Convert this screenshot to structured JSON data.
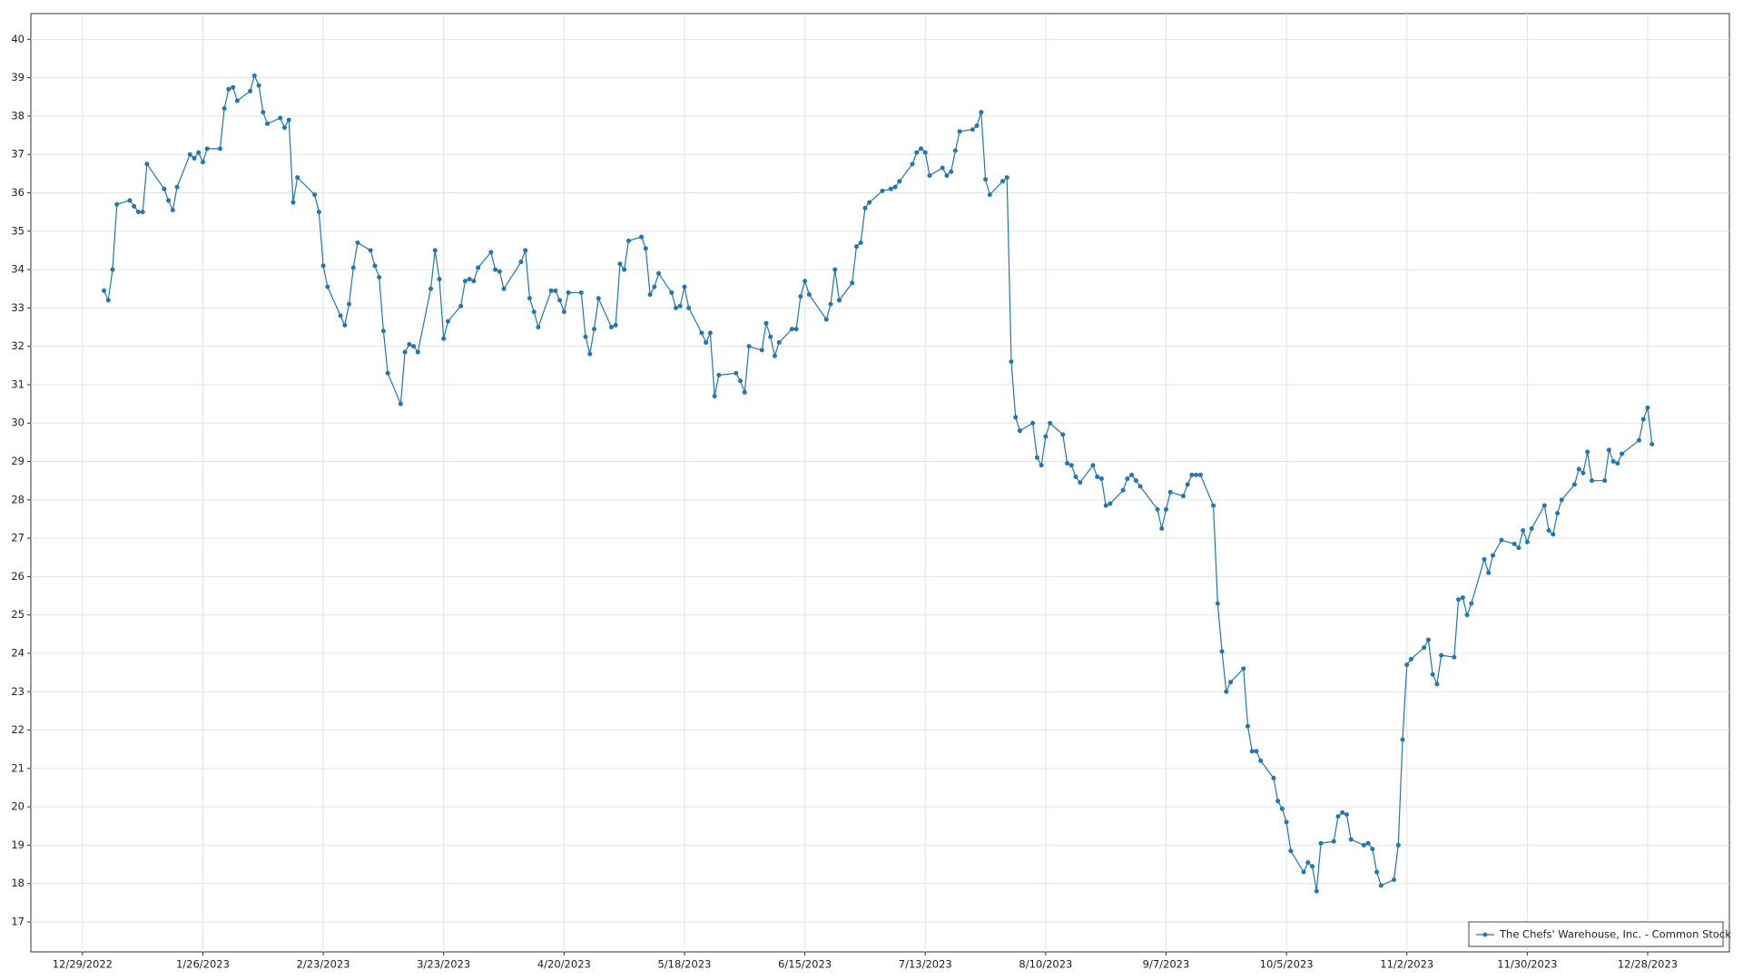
{
  "chart_data": {
    "type": "line",
    "xlim": [
      "12/17/2022",
      "1/16/2024"
    ],
    "ylim": [
      16.22,
      40.67
    ],
    "xticks": [
      "12/29/2022",
      "1/26/2023",
      "2/23/2023",
      "3/23/2023",
      "4/20/2023",
      "5/18/2023",
      "6/15/2023",
      "7/13/2023",
      "8/10/2023",
      "9/7/2023",
      "10/5/2023",
      "11/2/2023",
      "11/30/2023",
      "12/28/2023"
    ],
    "yticks": [
      17,
      18,
      19,
      20,
      21,
      22,
      23,
      24,
      25,
      26,
      27,
      28,
      29,
      30,
      31,
      32,
      33,
      34,
      35,
      36,
      37,
      38,
      39,
      40
    ],
    "grid": true,
    "legend": "lower right",
    "x": [
      "1/3/2023",
      "1/4/2023",
      "1/5/2023",
      "1/6/2023",
      "1/9/2023",
      "1/10/2023",
      "1/11/2023",
      "1/12/2023",
      "1/13/2023",
      "1/17/2023",
      "1/18/2023",
      "1/19/2023",
      "1/20/2023",
      "1/23/2023",
      "1/24/2023",
      "1/25/2023",
      "1/26/2023",
      "1/27/2023",
      "1/30/2023",
      "1/31/2023",
      "2/1/2023",
      "2/2/2023",
      "2/3/2023",
      "2/6/2023",
      "2/7/2023",
      "2/8/2023",
      "2/9/2023",
      "2/10/2023",
      "2/13/2023",
      "2/14/2023",
      "2/15/2023",
      "2/16/2023",
      "2/17/2023",
      "2/21/2023",
      "2/22/2023",
      "2/23/2023",
      "2/24/2023",
      "2/27/2023",
      "2/28/2023",
      "3/1/2023",
      "3/2/2023",
      "3/3/2023",
      "3/6/2023",
      "3/7/2023",
      "3/8/2023",
      "3/9/2023",
      "3/10/2023",
      "3/13/2023",
      "3/14/2023",
      "3/15/2023",
      "3/16/2023",
      "3/17/2023",
      "3/20/2023",
      "3/21/2023",
      "3/22/2023",
      "3/23/2023",
      "3/24/2023",
      "3/27/2023",
      "3/28/2023",
      "3/29/2023",
      "3/30/2023",
      "3/31/2023",
      "4/3/2023",
      "4/4/2023",
      "4/5/2023",
      "4/6/2023",
      "4/10/2023",
      "4/11/2023",
      "4/12/2023",
      "4/13/2023",
      "4/14/2023",
      "4/17/2023",
      "4/18/2023",
      "4/19/2023",
      "4/20/2023",
      "4/21/2023",
      "4/24/2023",
      "4/25/2023",
      "4/26/2023",
      "4/27/2023",
      "4/28/2023",
      "5/1/2023",
      "5/2/2023",
      "5/3/2023",
      "5/4/2023",
      "5/5/2023",
      "5/8/2023",
      "5/9/2023",
      "5/10/2023",
      "5/11/2023",
      "5/12/2023",
      "5/15/2023",
      "5/16/2023",
      "5/17/2023",
      "5/18/2023",
      "5/19/2023",
      "5/22/2023",
      "5/23/2023",
      "5/24/2023",
      "5/25/2023",
      "5/26/2023",
      "5/30/2023",
      "5/31/2023",
      "6/1/2023",
      "6/2/2023",
      "6/5/2023",
      "6/6/2023",
      "6/7/2023",
      "6/8/2023",
      "6/9/2023",
      "6/12/2023",
      "6/13/2023",
      "6/14/2023",
      "6/15/2023",
      "6/16/2023",
      "6/20/2023",
      "6/21/2023",
      "6/22/2023",
      "6/23/2023",
      "6/26/2023",
      "6/27/2023",
      "6/28/2023",
      "6/29/2023",
      "6/30/2023",
      "7/3/2023",
      "7/5/2023",
      "7/6/2023",
      "7/7/2023",
      "7/10/2023",
      "7/11/2023",
      "7/12/2023",
      "7/13/2023",
      "7/14/2023",
      "7/17/2023",
      "7/18/2023",
      "7/19/2023",
      "7/20/2023",
      "7/21/2023",
      "7/24/2023",
      "7/25/2023",
      "7/26/2023",
      "7/27/2023",
      "7/28/2023",
      "7/31/2023",
      "8/1/2023",
      "8/2/2023",
      "8/3/2023",
      "8/4/2023",
      "8/7/2023",
      "8/8/2023",
      "8/9/2023",
      "8/10/2023",
      "8/11/2023",
      "8/14/2023",
      "8/15/2023",
      "8/16/2023",
      "8/17/2023",
      "8/18/2023",
      "8/21/2023",
      "8/22/2023",
      "8/23/2023",
      "8/24/2023",
      "8/25/2023",
      "8/28/2023",
      "8/29/2023",
      "8/30/2023",
      "8/31/2023",
      "9/1/2023",
      "9/5/2023",
      "9/6/2023",
      "9/7/2023",
      "9/8/2023",
      "9/11/2023",
      "9/12/2023",
      "9/13/2023",
      "9/14/2023",
      "9/15/2023",
      "9/18/2023",
      "9/19/2023",
      "9/20/2023",
      "9/21/2023",
      "9/22/2023",
      "9/25/2023",
      "9/26/2023",
      "9/27/2023",
      "9/28/2023",
      "9/29/2023",
      "10/2/2023",
      "10/3/2023",
      "10/4/2023",
      "10/5/2023",
      "10/6/2023",
      "10/9/2023",
      "10/10/2023",
      "10/11/2023",
      "10/12/2023",
      "10/13/2023",
      "10/16/2023",
      "10/17/2023",
      "10/18/2023",
      "10/19/2023",
      "10/20/2023",
      "10/23/2023",
      "10/24/2023",
      "10/25/2023",
      "10/26/2023",
      "10/27/2023",
      "10/30/2023",
      "10/31/2023",
      "11/1/2023",
      "11/2/2023",
      "11/3/2023",
      "11/6/2023",
      "11/7/2023",
      "11/8/2023",
      "11/9/2023",
      "11/10/2023",
      "11/13/2023",
      "11/14/2023",
      "11/15/2023",
      "11/16/2023",
      "11/17/2023",
      "11/20/2023",
      "11/21/2023",
      "11/22/2023",
      "11/24/2023",
      "11/27/2023",
      "11/28/2023",
      "11/29/2023",
      "11/30/2023",
      "12/1/2023",
      "12/4/2023",
      "12/5/2023",
      "12/6/2023",
      "12/7/2023",
      "12/8/2023",
      "12/11/2023",
      "12/12/2023",
      "12/13/2023",
      "12/14/2023",
      "12/15/2023",
      "12/18/2023",
      "12/19/2023",
      "12/20/2023",
      "12/21/2023",
      "12/22/2023",
      "12/26/2023",
      "12/27/2023",
      "12/28/2023",
      "12/29/2023"
    ],
    "series": [
      {
        "name": "The Chefs' Warehouse, Inc. - Common Stock",
        "color": "#2077b4",
        "values": [
          33.45,
          33.2,
          34.0,
          35.7,
          35.8,
          35.65,
          35.5,
          35.5,
          36.75,
          36.1,
          35.8,
          35.55,
          36.15,
          37.0,
          36.9,
          37.05,
          36.8,
          37.15,
          37.15,
          38.2,
          38.7,
          38.75,
          38.4,
          38.65,
          39.05,
          38.8,
          38.1,
          37.8,
          37.95,
          37.7,
          37.9,
          35.75,
          36.4,
          35.95,
          35.5,
          34.1,
          33.55,
          32.8,
          32.55,
          33.1,
          34.05,
          34.7,
          34.5,
          34.1,
          33.8,
          32.4,
          31.3,
          30.5,
          31.85,
          32.05,
          32.0,
          31.85,
          33.5,
          34.5,
          33.75,
          32.2,
          32.65,
          33.05,
          33.7,
          33.75,
          33.7,
          34.05,
          34.45,
          34.0,
          33.95,
          33.5,
          34.2,
          34.5,
          33.25,
          32.9,
          32.5,
          33.45,
          33.45,
          33.2,
          32.9,
          33.4,
          33.4,
          32.25,
          31.8,
          32.45,
          33.25,
          32.5,
          32.55,
          34.15,
          34.0,
          34.75,
          34.85,
          34.55,
          33.35,
          33.55,
          33.9,
          33.4,
          33.0,
          33.05,
          33.55,
          33.0,
          32.35,
          32.1,
          32.35,
          30.7,
          31.25,
          31.3,
          31.1,
          30.8,
          32.0,
          31.9,
          32.6,
          32.25,
          31.75,
          32.1,
          32.45,
          32.45,
          33.3,
          33.7,
          33.35,
          32.7,
          33.1,
          34.0,
          33.2,
          33.65,
          34.6,
          34.7,
          35.6,
          35.75,
          36.05,
          36.1,
          36.15,
          36.3,
          36.75,
          37.05,
          37.15,
          37.05,
          36.45,
          36.65,
          36.45,
          36.55,
          37.1,
          37.6,
          37.65,
          37.75,
          38.1,
          36.35,
          35.95,
          36.3,
          36.4,
          31.6,
          30.15,
          29.8,
          30.0,
          29.1,
          28.9,
          29.65,
          30.0,
          29.7,
          28.95,
          28.9,
          28.6,
          28.45,
          28.9,
          28.6,
          28.55,
          27.85,
          27.9,
          28.25,
          28.55,
          28.65,
          28.5,
          28.35,
          27.75,
          27.25,
          27.75,
          28.2,
          28.1,
          28.4,
          28.65,
          28.65,
          28.65,
          27.85,
          25.3,
          24.05,
          23.0,
          23.25,
          23.6,
          22.1,
          21.45,
          21.45,
          21.2,
          20.75,
          20.15,
          19.95,
          19.6,
          18.85,
          18.3,
          18.55,
          18.45,
          17.8,
          19.05,
          19.1,
          19.75,
          19.85,
          19.8,
          19.15,
          19.0,
          19.05,
          18.9,
          18.3,
          17.95,
          18.1,
          19.0,
          21.75,
          23.7,
          23.85,
          24.15,
          24.35,
          23.45,
          23.2,
          23.95,
          23.9,
          25.4,
          25.45,
          25.0,
          25.3,
          26.45,
          26.1,
          26.55,
          26.95,
          26.85,
          26.75,
          27.2,
          26.9,
          27.25,
          27.85,
          27.2,
          27.1,
          27.65,
          28.0,
          28.4,
          28.8,
          28.7,
          29.25,
          28.5,
          28.5,
          29.3,
          29.0,
          28.95,
          29.2,
          29.55,
          30.1,
          30.4,
          29.45
        ]
      }
    ]
  }
}
